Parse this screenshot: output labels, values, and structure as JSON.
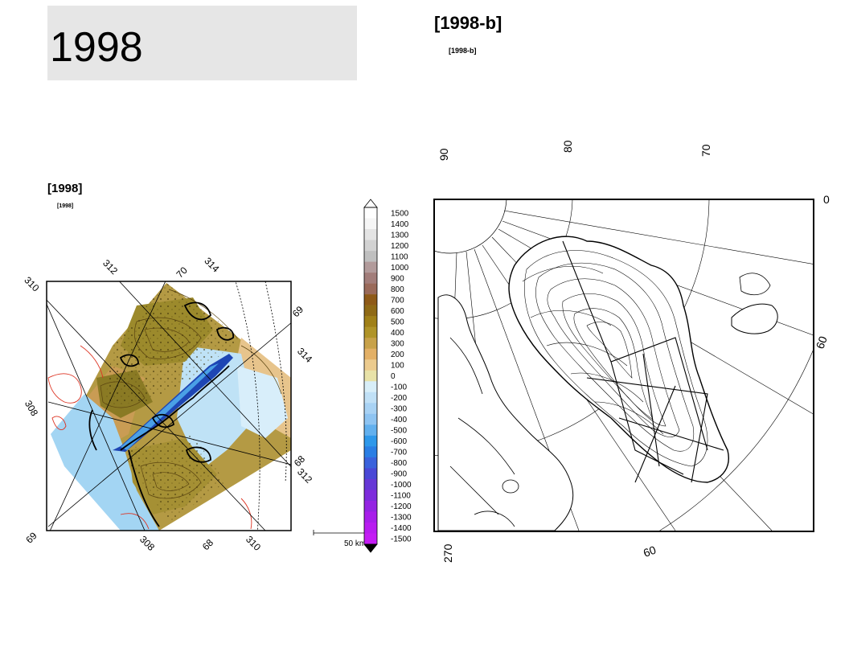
{
  "slide_title": "1998",
  "left_panel": {
    "label_large": "[1998]",
    "label_small": "[1998]",
    "grid_labels": {
      "top": [
        "312",
        "70",
        "314"
      ],
      "left": [
        "310",
        "308",
        "69"
      ],
      "right": [
        "69",
        "314",
        "68",
        "312"
      ],
      "bottom": [
        "308",
        "68",
        "310"
      ]
    },
    "scale_bar_label": "50 km"
  },
  "colorbar": {
    "values": [
      "1500",
      "1400",
      "1300",
      "1200",
      "1100",
      "1000",
      "900",
      "800",
      "700",
      "600",
      "500",
      "400",
      "300",
      "200",
      "100",
      "0",
      "-100",
      "-200",
      "-300",
      "-400",
      "-500",
      "-600",
      "-700",
      "-800",
      "-900",
      "-1000",
      "-1100",
      "-1200",
      "-1300",
      "-1400",
      "-1500"
    ],
    "colors": [
      "#ffffff",
      "#f6f6f6",
      "#e4e4e4",
      "#d2d2d2",
      "#bfbfbf",
      "#b29b9b",
      "#a27d7a",
      "#9a6a5a",
      "#8e5a18",
      "#8f6a16",
      "#a08018",
      "#b09428",
      "#c8a24a",
      "#e3b066",
      "#eccb8e",
      "#e8e2a8",
      "#d8eef8",
      "#c0e0f6",
      "#a8d2f4",
      "#8ec4f2",
      "#62b0ee",
      "#2e98ea",
      "#2a7ee4",
      "#3a62dc",
      "#4a48d6",
      "#6638d6",
      "#7e2cdc",
      "#9424e2",
      "#a81eea",
      "#b81cf0",
      "#c41cf4"
    ]
  },
  "right_panel": {
    "label_large": "[1998-b]",
    "label_small": "[1998-b]",
    "lon_labels_top": [
      "90",
      "80",
      "70"
    ],
    "lon_label_right": "0",
    "lat_label_right": "60",
    "lon_label_bottom_left": "270",
    "lat_label_bottom": "60"
  },
  "colors": {
    "title_bg": "#e6e6e6",
    "frame": "#000000",
    "ice_olive": "#9a8a2a",
    "ocean_blue": "#9ccfef",
    "land_tan": "#e8c890",
    "coast_red": "#dd3322"
  }
}
